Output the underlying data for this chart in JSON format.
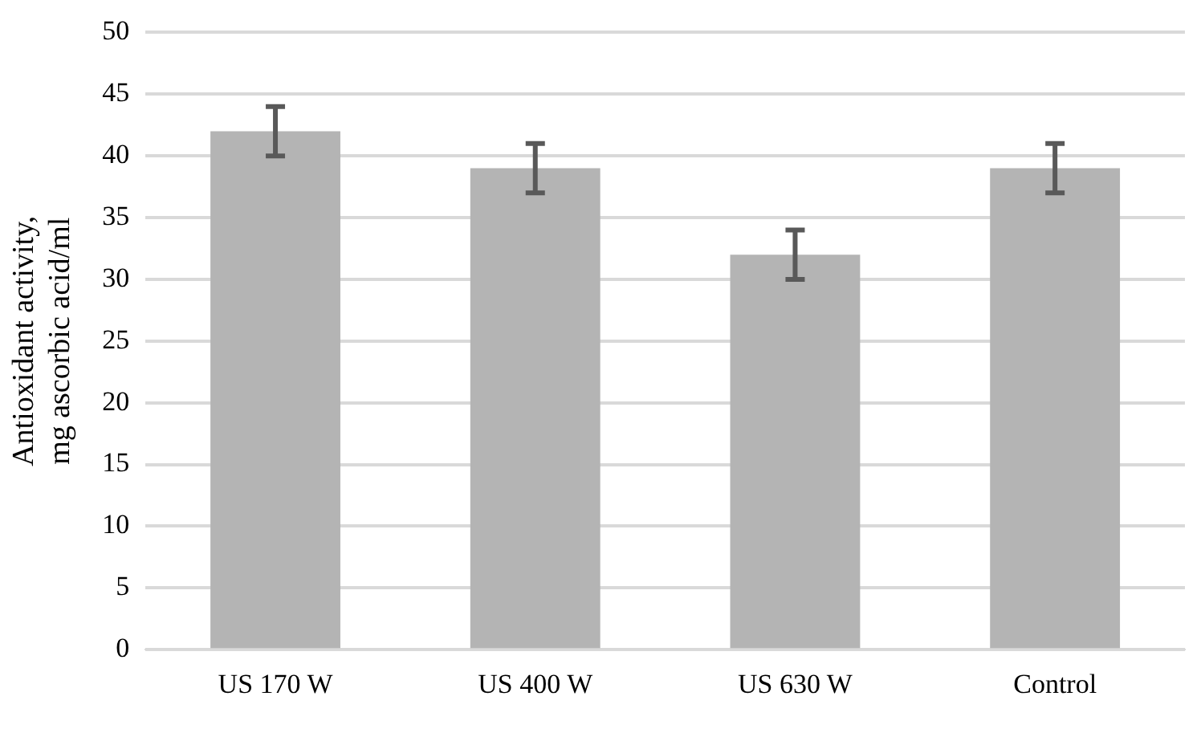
{
  "chart_data": {
    "type": "bar",
    "ylabel": "Antioxidant activity, mg ascorbic acid/ml",
    "categories": [
      "US 170 W",
      "US 400 W",
      "US 630 W",
      "Control"
    ],
    "values": [
      42,
      39,
      32,
      39
    ],
    "errors": [
      2,
      2,
      2,
      2
    ],
    "color": "#b4b4b4",
    "ylim": [
      0,
      50
    ],
    "yticks": [
      0,
      5,
      10,
      15,
      20,
      25,
      30,
      35,
      40,
      45,
      50
    ],
    "grid": "y",
    "legend": false
  }
}
